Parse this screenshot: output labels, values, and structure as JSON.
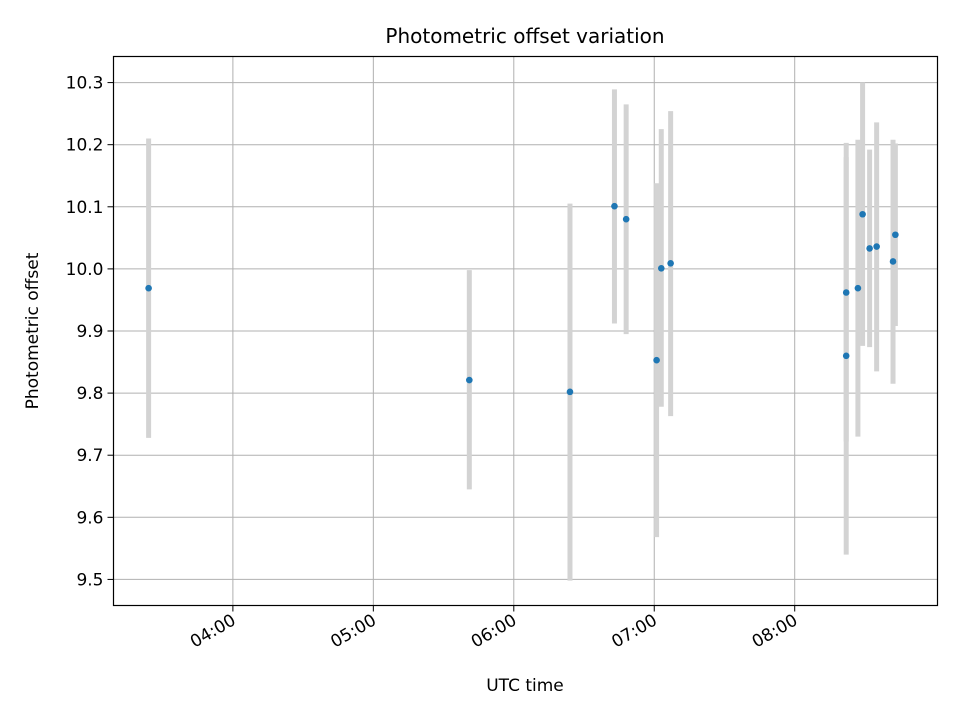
{
  "chart_data": {
    "type": "scatter",
    "title": "Photometric offset variation",
    "xlabel": "UTC time",
    "ylabel": "Photometric offset",
    "x_tick_labels": [
      "04:00",
      "05:00",
      "06:00",
      "07:00",
      "08:00"
    ],
    "y_ticks": [
      9.5,
      9.6,
      9.7,
      9.8,
      9.9,
      10.0,
      10.1,
      10.2,
      10.3
    ],
    "y_tick_labels": [
      "9.5",
      "9.6",
      "9.7",
      "9.8",
      "9.9",
      "10.0",
      "10.1",
      "10.2",
      "10.3"
    ],
    "xlim": [
      "03:09",
      "09:01"
    ],
    "ylim": [
      9.458,
      10.342
    ],
    "grid": true,
    "series": [
      {
        "color": "#1f77b4",
        "error_color": "#d3d3d3",
        "points": [
          {
            "x": "03:24",
            "y": 9.969,
            "ymin": 9.728,
            "ymax": 10.21
          },
          {
            "x": "05:41",
            "y": 9.821,
            "ymin": 9.645,
            "ymax": 9.998
          },
          {
            "x": "06:24",
            "y": 9.802,
            "ymin": 9.498,
            "ymax": 10.105
          },
          {
            "x": "06:43",
            "y": 10.101,
            "ymin": 9.912,
            "ymax": 10.289
          },
          {
            "x": "06:48",
            "y": 10.08,
            "ymin": 9.895,
            "ymax": 10.265
          },
          {
            "x": "07:01",
            "y": 9.853,
            "ymin": 9.568,
            "ymax": 10.138
          },
          {
            "x": "07:03",
            "y": 10.001,
            "ymin": 9.778,
            "ymax": 10.225
          },
          {
            "x": "07:07",
            "y": 10.009,
            "ymin": 9.763,
            "ymax": 10.254
          },
          {
            "x": "08:22",
            "y": 9.86,
            "ymin": 9.54,
            "ymax": 10.18
          },
          {
            "x": "08:22",
            "y": 9.962,
            "ymin": 9.722,
            "ymax": 10.203
          },
          {
            "x": "08:27",
            "y": 9.969,
            "ymin": 9.73,
            "ymax": 10.208
          },
          {
            "x": "08:29",
            "y": 10.088,
            "ymin": 9.876,
            "ymax": 10.3
          },
          {
            "x": "08:32",
            "y": 10.033,
            "ymin": 9.874,
            "ymax": 10.192
          },
          {
            "x": "08:35",
            "y": 10.036,
            "ymin": 9.835,
            "ymax": 10.236
          },
          {
            "x": "08:42",
            "y": 10.012,
            "ymin": 9.815,
            "ymax": 10.208
          },
          {
            "x": "08:43",
            "y": 10.055,
            "ymin": 9.908,
            "ymax": 10.202
          }
        ]
      }
    ]
  }
}
